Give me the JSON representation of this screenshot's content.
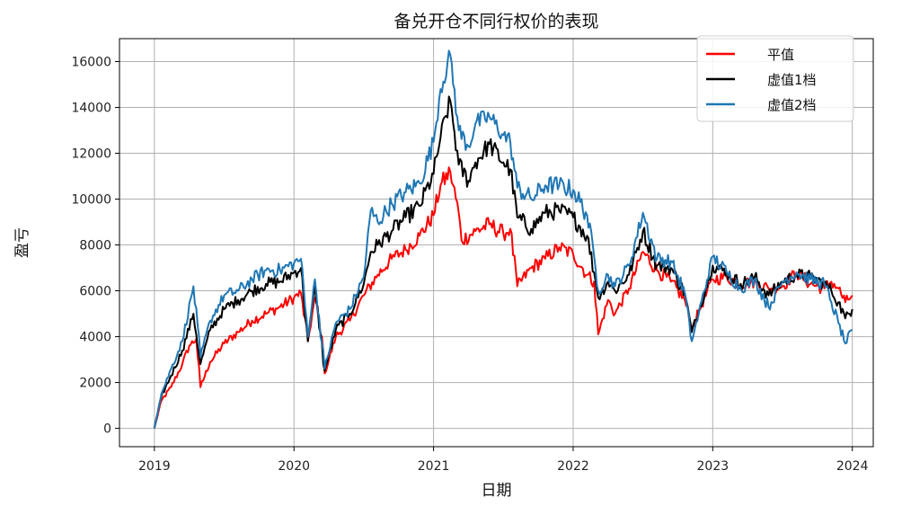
{
  "chart_data": {
    "type": "line",
    "title": "备兑开仓不同行权价的表现",
    "xlabel": "日期",
    "ylabel": "盈亏",
    "x_ticks": [
      "2019",
      "2020",
      "2021",
      "2022",
      "2023",
      "2024"
    ],
    "y_ticks": [
      0,
      2000,
      4000,
      6000,
      8000,
      10000,
      12000,
      14000,
      16000
    ],
    "xlim": [
      2018.75,
      2024.15
    ],
    "ylim": [
      -800,
      17000
    ],
    "grid": true,
    "legend_position": "top-right",
    "colors": {
      "平值": "#ff0000",
      "虚值1档": "#000000",
      "虚值2档": "#1f77b4"
    },
    "series": [
      {
        "name": "平值",
        "color": "#ff0000",
        "points": [
          [
            2019.0,
            0
          ],
          [
            2019.05,
            1200
          ],
          [
            2019.12,
            1800
          ],
          [
            2019.2,
            2800
          ],
          [
            2019.25,
            3600
          ],
          [
            2019.3,
            3900
          ],
          [
            2019.33,
            1800
          ],
          [
            2019.4,
            2900
          ],
          [
            2019.5,
            3700
          ],
          [
            2019.6,
            4200
          ],
          [
            2019.7,
            4700
          ],
          [
            2019.8,
            5000
          ],
          [
            2019.9,
            5300
          ],
          [
            2020.0,
            5700
          ],
          [
            2020.05,
            5900
          ],
          [
            2020.1,
            3800
          ],
          [
            2020.15,
            5700
          ],
          [
            2020.2,
            4000
          ],
          [
            2020.22,
            2400
          ],
          [
            2020.3,
            4000
          ],
          [
            2020.4,
            4700
          ],
          [
            2020.5,
            5800
          ],
          [
            2020.6,
            6700
          ],
          [
            2020.7,
            7400
          ],
          [
            2020.8,
            7800
          ],
          [
            2020.9,
            8400
          ],
          [
            2021.0,
            9300
          ],
          [
            2021.05,
            10600
          ],
          [
            2021.12,
            11200
          ],
          [
            2021.18,
            9400
          ],
          [
            2021.2,
            8200
          ],
          [
            2021.3,
            8600
          ],
          [
            2021.4,
            8900
          ],
          [
            2021.5,
            8500
          ],
          [
            2021.55,
            8700
          ],
          [
            2021.6,
            6200
          ],
          [
            2021.7,
            7000
          ],
          [
            2021.8,
            7400
          ],
          [
            2021.9,
            7900
          ],
          [
            2022.0,
            7600
          ],
          [
            2022.1,
            6700
          ],
          [
            2022.15,
            6400
          ],
          [
            2022.18,
            4100
          ],
          [
            2022.25,
            5600
          ],
          [
            2022.3,
            5000
          ],
          [
            2022.4,
            6100
          ],
          [
            2022.5,
            7700
          ],
          [
            2022.6,
            6900
          ],
          [
            2022.7,
            6400
          ],
          [
            2022.8,
            5600
          ],
          [
            2022.85,
            4300
          ],
          [
            2022.9,
            5100
          ],
          [
            2023.0,
            6500
          ],
          [
            2023.1,
            6600
          ],
          [
            2023.2,
            6300
          ],
          [
            2023.3,
            6400
          ],
          [
            2023.4,
            6100
          ],
          [
            2023.5,
            6200
          ],
          [
            2023.6,
            6800
          ],
          [
            2023.7,
            6300
          ],
          [
            2023.8,
            6100
          ],
          [
            2023.85,
            6400
          ],
          [
            2023.9,
            6100
          ],
          [
            2023.95,
            5500
          ],
          [
            2024.0,
            5800
          ]
        ]
      },
      {
        "name": "虚值1档",
        "color": "#000000",
        "points": [
          [
            2019.0,
            0
          ],
          [
            2019.05,
            1400
          ],
          [
            2019.12,
            2300
          ],
          [
            2019.2,
            3400
          ],
          [
            2019.28,
            5000
          ],
          [
            2019.33,
            2800
          ],
          [
            2019.4,
            4300
          ],
          [
            2019.5,
            5200
          ],
          [
            2019.6,
            5600
          ],
          [
            2019.7,
            6000
          ],
          [
            2019.8,
            6300
          ],
          [
            2019.9,
            6400
          ],
          [
            2020.0,
            6800
          ],
          [
            2020.05,
            7000
          ],
          [
            2020.1,
            3800
          ],
          [
            2020.15,
            6200
          ],
          [
            2020.22,
            2500
          ],
          [
            2020.3,
            4300
          ],
          [
            2020.4,
            5000
          ],
          [
            2020.5,
            6300
          ],
          [
            2020.55,
            7700
          ],
          [
            2020.6,
            8000
          ],
          [
            2020.7,
            8600
          ],
          [
            2020.8,
            9200
          ],
          [
            2020.9,
            9700
          ],
          [
            2021.0,
            11100
          ],
          [
            2021.05,
            12700
          ],
          [
            2021.12,
            14300
          ],
          [
            2021.18,
            11500
          ],
          [
            2021.25,
            10800
          ],
          [
            2021.3,
            11600
          ],
          [
            2021.4,
            12400
          ],
          [
            2021.5,
            11600
          ],
          [
            2021.55,
            11300
          ],
          [
            2021.6,
            9200
          ],
          [
            2021.7,
            8700
          ],
          [
            2021.8,
            9400
          ],
          [
            2021.9,
            9500
          ],
          [
            2022.0,
            9200
          ],
          [
            2022.1,
            8400
          ],
          [
            2022.15,
            6800
          ],
          [
            2022.18,
            5700
          ],
          [
            2022.25,
            6400
          ],
          [
            2022.3,
            6000
          ],
          [
            2022.4,
            6700
          ],
          [
            2022.5,
            8600
          ],
          [
            2022.6,
            7100
          ],
          [
            2022.7,
            7000
          ],
          [
            2022.8,
            5900
          ],
          [
            2022.85,
            4200
          ],
          [
            2022.9,
            5100
          ],
          [
            2023.0,
            7100
          ],
          [
            2023.1,
            6800
          ],
          [
            2023.2,
            6300
          ],
          [
            2023.3,
            6600
          ],
          [
            2023.4,
            5800
          ],
          [
            2023.5,
            6400
          ],
          [
            2023.6,
            6700
          ],
          [
            2023.7,
            6600
          ],
          [
            2023.8,
            6300
          ],
          [
            2023.85,
            6000
          ],
          [
            2023.9,
            5500
          ],
          [
            2023.95,
            4800
          ],
          [
            2024.0,
            5200
          ]
        ]
      },
      {
        "name": "虚值2档",
        "color": "#1f77b4",
        "points": [
          [
            2019.0,
            0
          ],
          [
            2019.05,
            1500
          ],
          [
            2019.12,
            2600
          ],
          [
            2019.2,
            3800
          ],
          [
            2019.28,
            6200
          ],
          [
            2019.33,
            3100
          ],
          [
            2019.4,
            4700
          ],
          [
            2019.5,
            5800
          ],
          [
            2019.6,
            6000
          ],
          [
            2019.7,
            6500
          ],
          [
            2019.8,
            6900
          ],
          [
            2019.9,
            6900
          ],
          [
            2020.0,
            7200
          ],
          [
            2020.05,
            7400
          ],
          [
            2020.1,
            4000
          ],
          [
            2020.15,
            6500
          ],
          [
            2020.22,
            2600
          ],
          [
            2020.3,
            4600
          ],
          [
            2020.4,
            5200
          ],
          [
            2020.5,
            6600
          ],
          [
            2020.55,
            9500
          ],
          [
            2020.6,
            9000
          ],
          [
            2020.7,
            9800
          ],
          [
            2020.8,
            10300
          ],
          [
            2020.9,
            10700
          ],
          [
            2021.0,
            12500
          ],
          [
            2021.05,
            14800
          ],
          [
            2021.12,
            16300
          ],
          [
            2021.18,
            13000
          ],
          [
            2021.25,
            12300
          ],
          [
            2021.3,
            13300
          ],
          [
            2021.4,
            13600
          ],
          [
            2021.5,
            12800
          ],
          [
            2021.55,
            12500
          ],
          [
            2021.6,
            10500
          ],
          [
            2021.7,
            10000
          ],
          [
            2021.8,
            10600
          ],
          [
            2021.9,
            10600
          ],
          [
            2022.0,
            10400
          ],
          [
            2022.1,
            9300
          ],
          [
            2022.15,
            7500
          ],
          [
            2022.18,
            6000
          ],
          [
            2022.25,
            6700
          ],
          [
            2022.3,
            6200
          ],
          [
            2022.4,
            7100
          ],
          [
            2022.5,
            9400
          ],
          [
            2022.6,
            7400
          ],
          [
            2022.7,
            7300
          ],
          [
            2022.8,
            5900
          ],
          [
            2022.85,
            3800
          ],
          [
            2022.9,
            5000
          ],
          [
            2023.0,
            7500
          ],
          [
            2023.1,
            6800
          ],
          [
            2023.2,
            6100
          ],
          [
            2023.3,
            6500
          ],
          [
            2023.4,
            5300
          ],
          [
            2023.5,
            6400
          ],
          [
            2023.6,
            6800
          ],
          [
            2023.7,
            6500
          ],
          [
            2023.8,
            6300
          ],
          [
            2023.85,
            5500
          ],
          [
            2023.9,
            4600
          ],
          [
            2023.95,
            3700
          ],
          [
            2024.0,
            4300
          ]
        ]
      }
    ]
  }
}
